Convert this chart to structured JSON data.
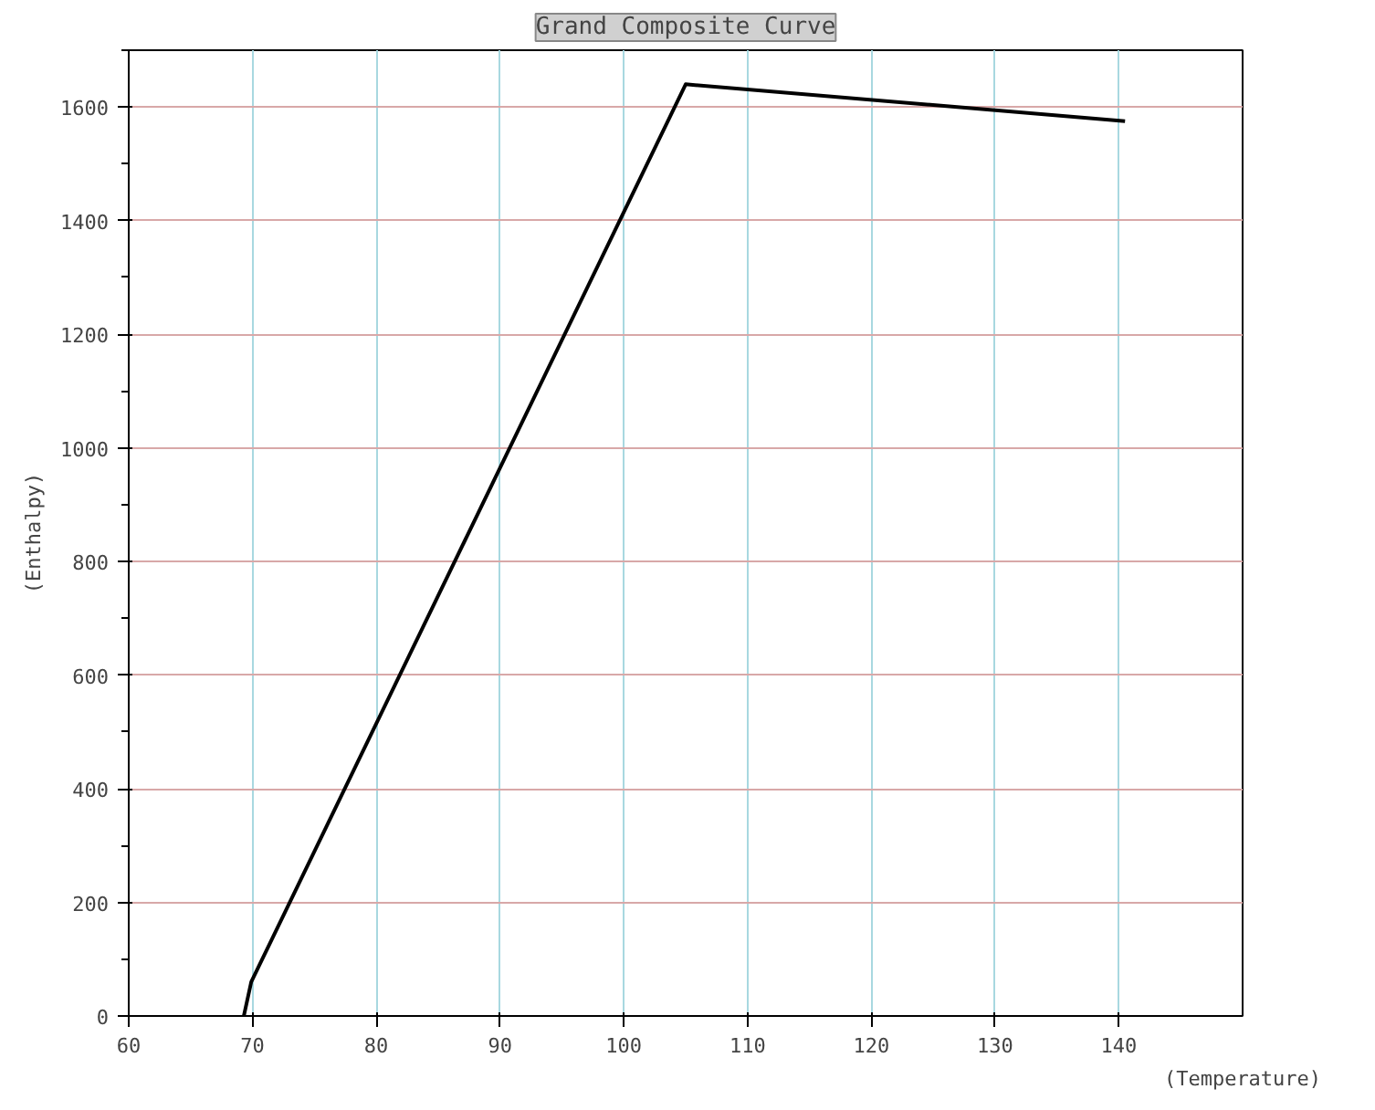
{
  "chart_data": {
    "type": "line",
    "title": "Grand Composite Curve",
    "xlabel": "(Temperature)",
    "ylabel": "(Enthalpy)",
    "x": [
      69.3,
      69.9,
      105.0,
      140.5
    ],
    "series": [
      {
        "color": "#000000",
        "values": [
          0,
          60,
          1640,
          1575
        ]
      }
    ],
    "xlim": [
      60,
      150
    ],
    "xticks": [
      60,
      70,
      80,
      90,
      100,
      110,
      120,
      130,
      140
    ],
    "ylim": [
      0,
      1700
    ],
    "yticks": [
      0,
      200,
      400,
      600,
      800,
      1000,
      1200,
      1400,
      1600
    ],
    "grid": true,
    "marker": "none",
    "line_style": "solid"
  }
}
